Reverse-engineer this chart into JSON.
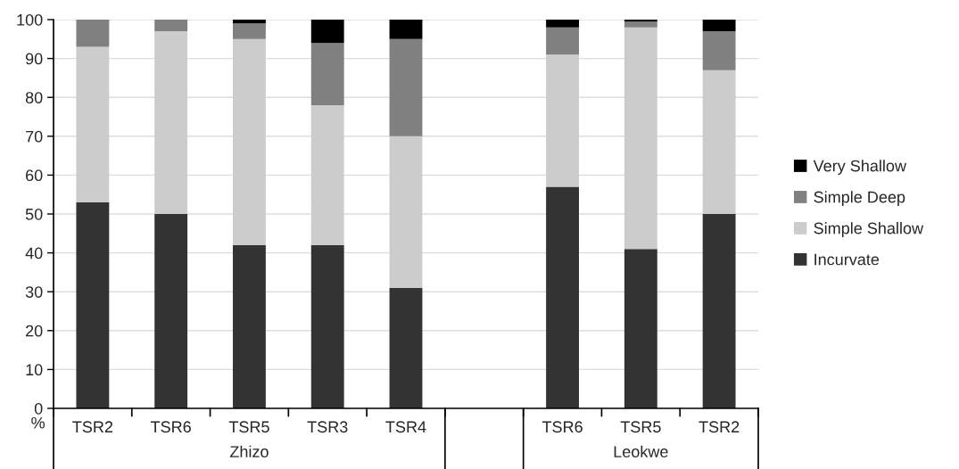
{
  "chart_data": {
    "type": "bar",
    "stacked": true,
    "ylabel": "%",
    "categories": [
      "TSR2",
      "TSR6",
      "TSR5",
      "TSR3",
      "TSR4",
      null,
      "TSR6",
      "TSR5",
      "TSR2"
    ],
    "series": [
      {
        "name": "Incurvate",
        "color": "#333333",
        "values": [
          53,
          50,
          42,
          42,
          31,
          null,
          57,
          41,
          50
        ]
      },
      {
        "name": "Simple Shallow",
        "color": "#cccccc",
        "values": [
          40,
          47,
          53,
          36,
          39,
          null,
          34,
          57,
          37
        ]
      },
      {
        "name": "Simple Deep",
        "color": "#808080",
        "values": [
          7,
          3,
          4,
          16,
          25,
          null,
          7,
          1.5,
          10
        ]
      },
      {
        "name": "Very Shallow",
        "color": "#000000",
        "values": [
          0,
          0,
          1,
          6,
          5,
          null,
          2,
          0.5,
          3
        ]
      }
    ],
    "annotations": [
      "Zhizo",
      "Leokwe"
    ],
    "ylim": [
      0,
      100
    ],
    "yticks": [
      0,
      10,
      20,
      30,
      40,
      50,
      60,
      70,
      80,
      90,
      100
    ],
    "grid": "y",
    "legend": "right"
  }
}
